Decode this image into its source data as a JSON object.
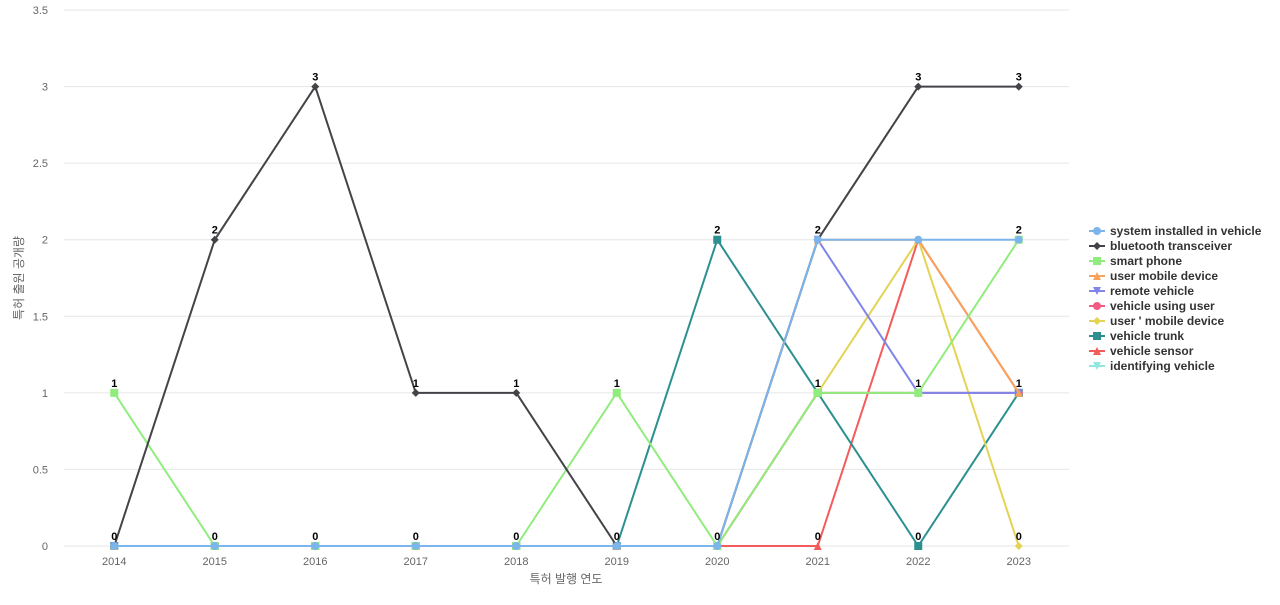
{
  "chart_data": {
    "type": "line",
    "title": "",
    "xlabel": "특허 발행 연도",
    "ylabel": "특허 출원 공개량",
    "ylim": [
      0,
      3.5
    ],
    "yticks": [
      "0",
      "0.5",
      "1",
      "1.5",
      "2",
      "2.5",
      "3",
      "3.5"
    ],
    "categories": [
      "2014",
      "2015",
      "2016",
      "2017",
      "2018",
      "2019",
      "2020",
      "2021",
      "2022",
      "2023"
    ],
    "grid": "horizontal",
    "legend": "right",
    "series": [
      {
        "name": "system installed in vehicle",
        "color": "#7cb5ec",
        "marker": "circle",
        "values": [
          0,
          0,
          0,
          0,
          0,
          0,
          0,
          2,
          2,
          2
        ]
      },
      {
        "name": "bluetooth transceiver",
        "color": "#434348",
        "marker": "diamond",
        "values": [
          0,
          2,
          3,
          1,
          1,
          0,
          0,
          2,
          3,
          3
        ]
      },
      {
        "name": "smart phone",
        "color": "#90ed7d",
        "marker": "square",
        "values": [
          1,
          0,
          0,
          0,
          0,
          1,
          0,
          1,
          1,
          2
        ]
      },
      {
        "name": "user mobile device",
        "color": "#f7a35c",
        "marker": "triangle",
        "values": [
          0,
          0,
          0,
          0,
          0,
          0,
          0,
          2,
          2,
          1
        ]
      },
      {
        "name": "remote vehicle",
        "color": "#8085e9",
        "marker": "triangle-down",
        "values": [
          0,
          0,
          0,
          0,
          0,
          0,
          0,
          2,
          1,
          1
        ]
      },
      {
        "name": "vehicle using user",
        "color": "#f15c80",
        "marker": "circle",
        "values": [
          0,
          0,
          0,
          0,
          0,
          0,
          0,
          1,
          1,
          1
        ]
      },
      {
        "name": "user ' mobile device",
        "color": "#e4d354",
        "marker": "diamond",
        "values": [
          0,
          0,
          0,
          0,
          0,
          0,
          0,
          1,
          2,
          0
        ]
      },
      {
        "name": "vehicle trunk",
        "color": "#2b908f",
        "marker": "square",
        "values": [
          0,
          0,
          0,
          0,
          0,
          0,
          2,
          1,
          0,
          1
        ]
      },
      {
        "name": "vehicle sensor",
        "color": "#f45b5b",
        "marker": "triangle",
        "values": [
          0,
          0,
          0,
          0,
          0,
          0,
          0,
          0,
          2,
          1
        ]
      },
      {
        "name": "identifying vehicle",
        "color": "#91e8e1",
        "marker": "triangle-down",
        "values": [
          0,
          0,
          0,
          0,
          0,
          0,
          0,
          1,
          1,
          1
        ]
      }
    ],
    "data_labels": [
      "1",
      "2",
      "3",
      "1",
      "1",
      "1",
      "2",
      "2",
      "3",
      "3"
    ],
    "data_labels_zero": [
      "0",
      "0",
      "0",
      "0",
      "0",
      "0",
      "0",
      "0",
      "0",
      "0"
    ],
    "data_labels_extra": [
      "2",
      "1",
      "1"
    ]
  }
}
